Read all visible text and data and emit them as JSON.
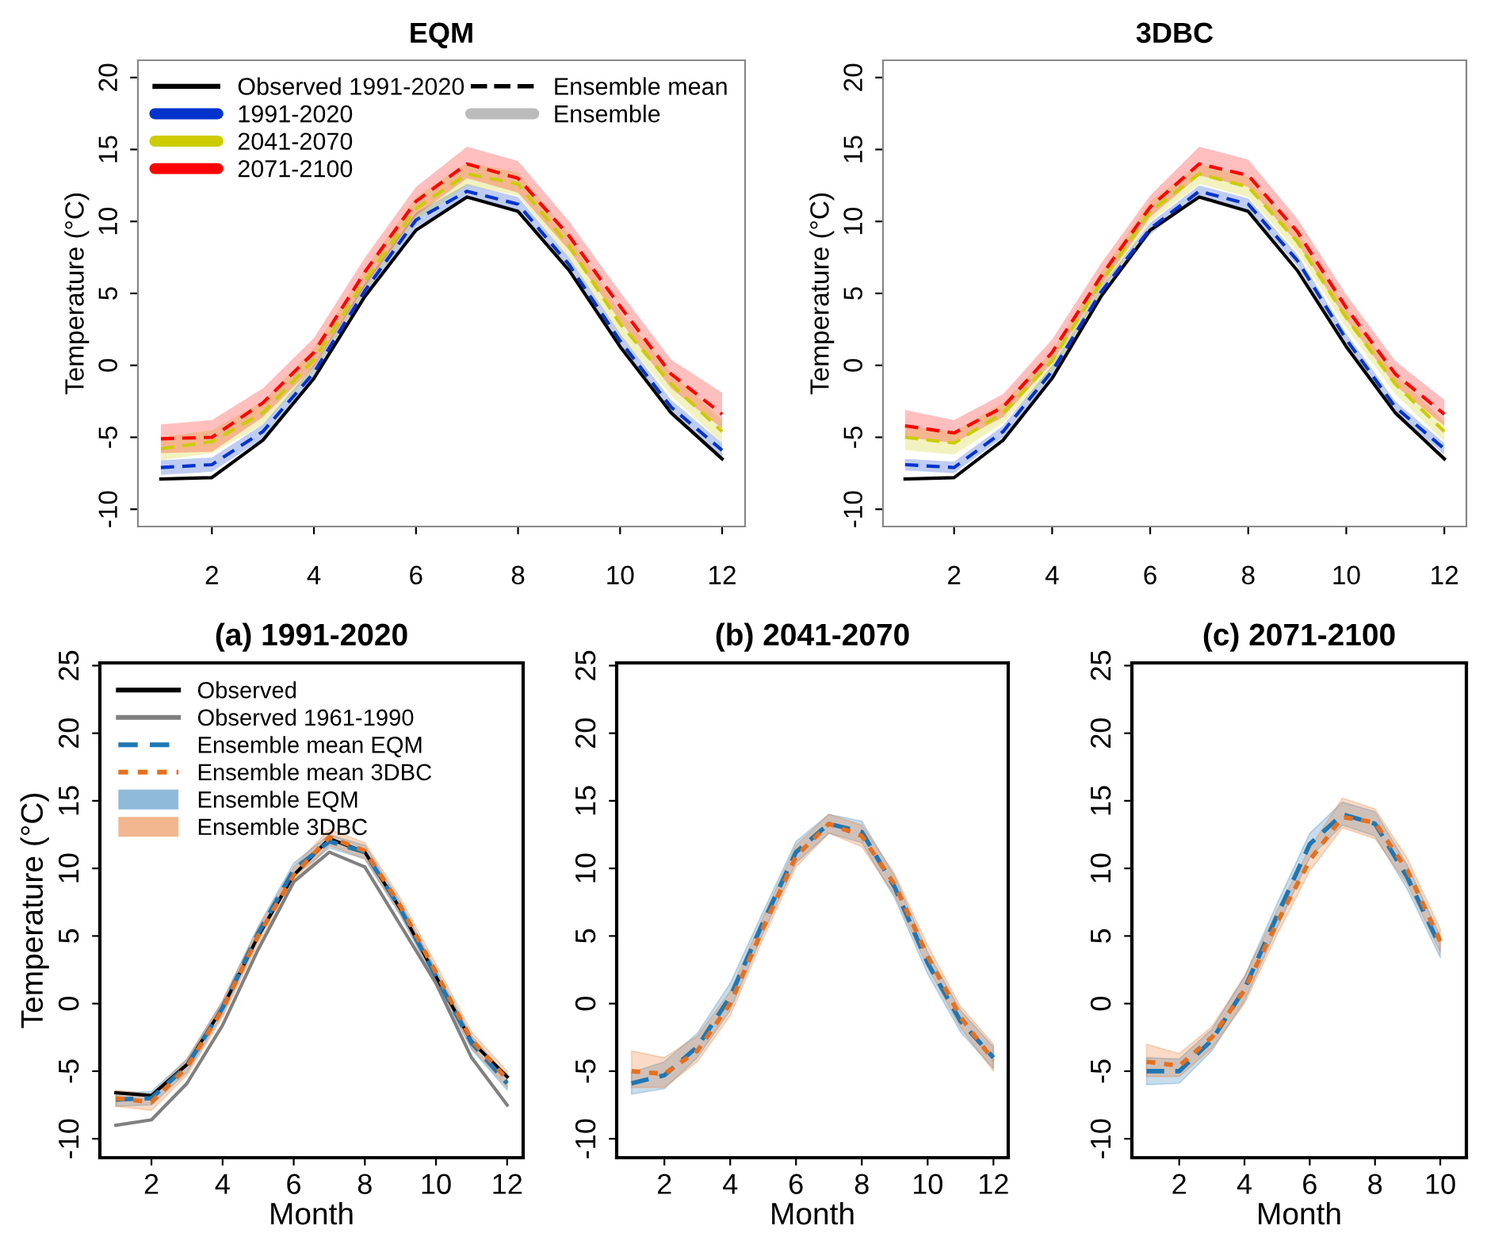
{
  "chart_data": [
    {
      "type": "line",
      "title": "EQM",
      "ylabel": "Temperature (°C)",
      "x": [
        1,
        2,
        3,
        4,
        5,
        6,
        7,
        8,
        9,
        10,
        11,
        12
      ],
      "xlim": [
        0.55,
        12.45
      ],
      "ylim": [
        -11.2,
        21.2
      ],
      "xticks": [
        2,
        4,
        6,
        8,
        10,
        12
      ],
      "yticks": [
        -10,
        -5,
        0,
        5,
        10,
        15,
        20
      ],
      "grid": false,
      "legend": "top left",
      "annotations": [
        "Ensemble mean",
        "Ensemble"
      ],
      "series": [
        {
          "name": "Observed 1991-2020",
          "color": "#000000",
          "line_style": "solid",
          "values": [
            -7.9,
            -7.8,
            -5.2,
            -0.9,
            4.8,
            9.4,
            11.7,
            10.7,
            6.6,
            1.3,
            -3.3,
            -6.5
          ]
        },
        {
          "name": "1991-2020",
          "color": "#0033cc",
          "line_style": "dashed",
          "values": [
            -7.1,
            -6.9,
            -4.6,
            -0.5,
            5.2,
            10.1,
            12.1,
            11.2,
            7.0,
            1.7,
            -2.9,
            -5.9
          ],
          "lower": [
            -7.6,
            -7.4,
            -5.1,
            -1.0,
            4.7,
            9.6,
            11.6,
            10.7,
            6.5,
            1.2,
            -3.4,
            -6.4
          ],
          "upper": [
            -6.6,
            -6.4,
            -4.1,
            0.0,
            5.7,
            10.6,
            12.6,
            11.7,
            7.5,
            2.2,
            -2.4,
            -5.4
          ]
        },
        {
          "name": "2041-2070",
          "color": "#cccc00",
          "line_style": "dashed",
          "values": [
            -5.8,
            -5.3,
            -3.3,
            0.4,
            5.9,
            10.9,
            13.3,
            12.6,
            8.3,
            2.9,
            -1.3,
            -4.6
          ],
          "lower": [
            -6.6,
            -6.1,
            -4.1,
            -0.4,
            5.1,
            10.1,
            12.5,
            11.8,
            7.5,
            2.1,
            -2.1,
            -5.4
          ],
          "upper": [
            -5.0,
            -4.5,
            -2.5,
            1.2,
            6.7,
            11.7,
            14.1,
            13.4,
            9.1,
            3.7,
            -0.5,
            -3.8
          ]
        },
        {
          "name": "2071-2100",
          "color": "#ff0000",
          "line_style": "dashed",
          "values": [
            -5.1,
            -5.0,
            -2.6,
            0.9,
            6.5,
            11.4,
            14.0,
            13.0,
            9.0,
            4.1,
            -0.6,
            -3.4
          ],
          "lower": [
            -6.1,
            -6.0,
            -3.6,
            -0.1,
            5.5,
            10.4,
            13.0,
            12.0,
            8.0,
            3.1,
            -1.6,
            -4.4
          ],
          "upper": [
            -4.1,
            -3.8,
            -1.6,
            1.9,
            7.5,
            12.4,
            15.2,
            14.2,
            10.0,
            5.1,
            0.4,
            -1.9
          ]
        }
      ]
    },
    {
      "type": "line",
      "title": "3DBC",
      "ylabel": "Temperature (°C)",
      "x": [
        1,
        2,
        3,
        4,
        5,
        6,
        7,
        8,
        9,
        10,
        11,
        12
      ],
      "xlim": [
        0.55,
        12.45
      ],
      "ylim": [
        -11.2,
        21.2
      ],
      "xticks": [
        2,
        4,
        6,
        8,
        10,
        12
      ],
      "yticks": [
        -10,
        -5,
        0,
        5,
        10,
        15,
        20
      ],
      "grid": false,
      "series": [
        {
          "color": "#000000",
          "line_style": "solid",
          "values": [
            -7.9,
            -7.8,
            -5.2,
            -0.9,
            4.8,
            9.4,
            11.7,
            10.7,
            6.6,
            1.3,
            -3.3,
            -6.5
          ]
        },
        {
          "color": "#0033cc",
          "line_style": "dashed",
          "values": [
            -6.9,
            -7.1,
            -4.6,
            -0.4,
            5.1,
            9.5,
            12.1,
            11.2,
            7.3,
            1.8,
            -2.9,
            -5.8
          ],
          "lower": [
            -7.3,
            -7.5,
            -5.0,
            -0.8,
            4.7,
            9.1,
            11.7,
            10.8,
            6.9,
            1.4,
            -3.3,
            -6.2
          ],
          "upper": [
            -6.5,
            -6.7,
            -4.2,
            0.0,
            5.5,
            9.9,
            12.5,
            11.6,
            7.7,
            2.2,
            -2.5,
            -5.4
          ]
        },
        {
          "color": "#cccc00",
          "line_style": "dashed",
          "values": [
            -5.0,
            -5.4,
            -3.3,
            0.3,
            5.8,
            10.7,
            13.3,
            12.4,
            8.6,
            3.3,
            -1.3,
            -4.6
          ],
          "lower": [
            -5.9,
            -6.2,
            -4.0,
            -0.4,
            5.1,
            10.0,
            12.6,
            11.7,
            7.9,
            2.6,
            -2.0,
            -5.3
          ],
          "upper": [
            -4.2,
            -4.6,
            -2.6,
            1.0,
            6.5,
            11.4,
            14.0,
            13.1,
            9.3,
            4.0,
            -0.6,
            -3.9
          ]
        },
        {
          "color": "#ff0000",
          "line_style": "dashed",
          "values": [
            -4.2,
            -4.7,
            -2.9,
            0.9,
            6.2,
            11.0,
            14.0,
            13.2,
            9.3,
            4.0,
            -0.6,
            -3.4
          ],
          "lower": [
            -5.0,
            -5.4,
            -3.6,
            0.2,
            5.5,
            10.3,
            13.2,
            12.4,
            8.5,
            3.2,
            -1.4,
            -4.2
          ],
          "upper": [
            -3.1,
            -3.8,
            -2.0,
            1.8,
            7.1,
            11.8,
            15.2,
            14.3,
            10.2,
            4.9,
            0.3,
            -2.4
          ]
        }
      ]
    },
    {
      "type": "line",
      "title": "(a) 1991-2020",
      "xlabel": "Month",
      "ylabel": "Temperature (°C)",
      "x": [
        1,
        2,
        3,
        4,
        5,
        6,
        7,
        8,
        9,
        10,
        11,
        12
      ],
      "xlim": [
        0.55,
        12.45
      ],
      "ylim": [
        -11.4,
        25.2
      ],
      "xticks": [
        2,
        4,
        6,
        8,
        10,
        12
      ],
      "yticks": [
        -10,
        -5,
        0,
        5,
        10,
        15,
        20,
        25
      ],
      "grid": false,
      "legend": "top left",
      "annotations": [
        "Ensemble EQM",
        "Ensemble 3DBC"
      ],
      "series": [
        {
          "name": "Observed",
          "color": "#000000",
          "line_style": "solid",
          "values": [
            -6.6,
            -6.8,
            -4.5,
            -0.3,
            5.0,
            9.5,
            12.2,
            11.2,
            7.0,
            2.0,
            -2.8,
            -5.4
          ]
        },
        {
          "name": "Observed 1961-1990",
          "color": "#808080",
          "line_style": "solid",
          "values": [
            -9.0,
            -8.6,
            -5.9,
            -1.6,
            4.0,
            9.0,
            11.2,
            10.1,
            5.8,
            1.5,
            -4.0,
            -7.5
          ]
        },
        {
          "name": "Ensemble mean EQM",
          "color": "#1f77b4",
          "line_style": "dashed",
          "values": [
            -7.1,
            -7.0,
            -4.6,
            -0.3,
            5.2,
            9.9,
            12.0,
            11.2,
            7.0,
            2.0,
            -2.9,
            -5.9
          ],
          "lower": [
            -7.6,
            -7.5,
            -5.1,
            -0.8,
            4.7,
            9.4,
            11.5,
            10.7,
            6.5,
            1.5,
            -3.4,
            -6.4
          ],
          "upper": [
            -6.6,
            -6.5,
            -4.1,
            0.2,
            5.7,
            10.4,
            12.5,
            11.7,
            7.5,
            2.5,
            -2.4,
            -5.4
          ]
        },
        {
          "name": "Ensemble mean 3DBC",
          "color": "#e6701e",
          "line_style": "dotted",
          "values": [
            -7.0,
            -7.3,
            -4.7,
            -0.4,
            5.0,
            9.5,
            12.3,
            11.3,
            7.2,
            2.3,
            -2.7,
            -5.6
          ],
          "lower": [
            -7.6,
            -7.9,
            -5.3,
            -1.0,
            4.4,
            8.9,
            11.7,
            10.7,
            6.6,
            1.7,
            -3.3,
            -6.2
          ],
          "upper": [
            -6.4,
            -6.7,
            -4.1,
            0.2,
            5.6,
            10.1,
            12.9,
            11.9,
            7.8,
            2.9,
            -2.1,
            -5.0
          ]
        }
      ]
    },
    {
      "type": "line",
      "title": "(b) 2041-2070",
      "xlabel": "Month",
      "x": [
        1,
        2,
        3,
        4,
        5,
        6,
        7,
        8,
        9,
        10,
        11,
        12
      ],
      "xlim": [
        0.55,
        12.45
      ],
      "ylim": [
        -11.4,
        25.2
      ],
      "xticks": [
        2,
        4,
        6,
        8,
        10,
        12
      ],
      "yticks": [
        -10,
        -5,
        0,
        5,
        10,
        15,
        20,
        25
      ],
      "grid": false,
      "series": [
        {
          "color": "#1f77b4",
          "line_style": "dashed",
          "values": [
            -5.9,
            -5.3,
            -3.2,
            0.5,
            6.0,
            11.2,
            13.3,
            12.7,
            8.6,
            3.0,
            -1.3,
            -4.0
          ],
          "lower": [
            -6.7,
            -6.3,
            -4.0,
            -0.5,
            5.2,
            10.4,
            12.6,
            11.9,
            7.8,
            2.2,
            -2.1,
            -4.8
          ],
          "upper": [
            -5.1,
            -4.3,
            -2.2,
            1.5,
            6.8,
            12.0,
            14.0,
            13.5,
            9.4,
            3.8,
            -0.5,
            -3.2
          ]
        },
        {
          "color": "#e6701e",
          "line_style": "dotted",
          "values": [
            -5.0,
            -5.2,
            -3.5,
            0.0,
            5.6,
            10.9,
            13.3,
            12.4,
            8.8,
            3.5,
            -1.0,
            -4.2
          ],
          "lower": [
            -6.2,
            -6.2,
            -4.3,
            -0.9,
            4.8,
            10.1,
            12.6,
            11.6,
            8.0,
            2.7,
            -1.8,
            -5.0
          ],
          "upper": [
            -3.5,
            -4.0,
            -2.4,
            0.9,
            6.4,
            11.7,
            14.0,
            13.2,
            9.6,
            4.3,
            -0.2,
            -3.0
          ]
        }
      ]
    },
    {
      "type": "line",
      "title": "(c) 2071-2100",
      "xlabel": "Month",
      "x": [
        1,
        2,
        3,
        4,
        5,
        6,
        7,
        8,
        9,
        10
      ],
      "xlim": [
        0.55,
        10.8
      ],
      "ylim": [
        -11.4,
        25.2
      ],
      "xticks": [
        2,
        4,
        6,
        8,
        10
      ],
      "yticks": [
        -10,
        -5,
        0,
        5,
        10,
        15,
        20,
        25
      ],
      "grid": false,
      "series": [
        {
          "color": "#1f77b4",
          "line_style": "dashed",
          "values": [
            -5.0,
            -5.0,
            -2.7,
            1.1,
            6.5,
            11.8,
            14.0,
            13.3,
            9.3,
            4.2
          ],
          "lower": [
            -6.0,
            -5.9,
            -3.5,
            0.2,
            5.6,
            10.8,
            13.2,
            12.4,
            8.4,
            3.4
          ],
          "upper": [
            -4.0,
            -4.1,
            -1.9,
            2.0,
            7.4,
            12.6,
            14.9,
            14.2,
            10.2,
            5.0
          ]
        },
        {
          "color": "#e6701e",
          "line_style": "dotted",
          "values": [
            -4.3,
            -4.6,
            -2.5,
            1.0,
            6.0,
            10.6,
            13.8,
            13.4,
            9.8,
            4.6
          ],
          "lower": [
            -5.4,
            -5.4,
            -3.3,
            0.0,
            5.1,
            9.8,
            13.0,
            12.2,
            8.8,
            3.8
          ],
          "upper": [
            -3.0,
            -3.7,
            -1.7,
            2.0,
            6.9,
            11.5,
            15.2,
            14.4,
            10.7,
            5.5
          ]
        }
      ]
    }
  ]
}
